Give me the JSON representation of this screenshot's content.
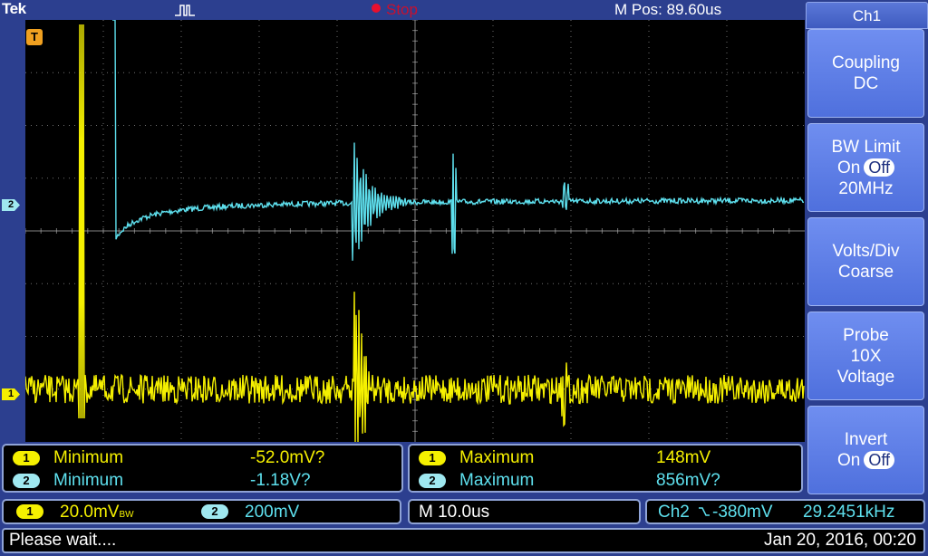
{
  "topbar": {
    "brand": "Tek",
    "run_state": "Stop",
    "horizontal_position": "M Pos: 89.60us"
  },
  "markers": {
    "trigger": "T",
    "ch1": "1",
    "ch2": "2"
  },
  "side_menu": {
    "title": "Ch1",
    "buttons": [
      {
        "line1": "Coupling",
        "line2": "DC"
      },
      {
        "line1": "BW Limit",
        "on": "On",
        "off": "Off",
        "line3": "20MHz"
      },
      {
        "line1": "Volts/Div",
        "line2": "Coarse"
      },
      {
        "line1": "Probe",
        "line2": "10X",
        "line3": "Voltage"
      },
      {
        "line1": "Invert",
        "on": "On",
        "off": "Off"
      }
    ]
  },
  "measurements": {
    "left": [
      {
        "channel": "1",
        "name": "Minimum",
        "value": "-52.0mV?"
      },
      {
        "channel": "2",
        "name": "Minimum",
        "value": "-1.18V?"
      }
    ],
    "right": [
      {
        "channel": "1",
        "name": "Maximum",
        "value": "148mV"
      },
      {
        "channel": "2",
        "name": "Maximum",
        "value": "856mV?"
      }
    ]
  },
  "status": {
    "ch1_badge": "1",
    "ch1_scale": "20.0mV",
    "ch1_bw_suffix": "BW",
    "ch2_badge": "2",
    "ch2_scale": "200mV",
    "timebase": "M 10.0us",
    "trigger_source": "Ch2",
    "trigger_slope_icon": "falling-edge",
    "trigger_level": "-380mV",
    "frequency": "29.2451kHz"
  },
  "message": "Please wait....",
  "datetime": "Jan 20, 2016, 00:20",
  "colors": {
    "ch1": "#f5f000",
    "ch2": "#5ee0ee",
    "trigger": "#f0a020",
    "background": "#2c3f8f"
  }
}
